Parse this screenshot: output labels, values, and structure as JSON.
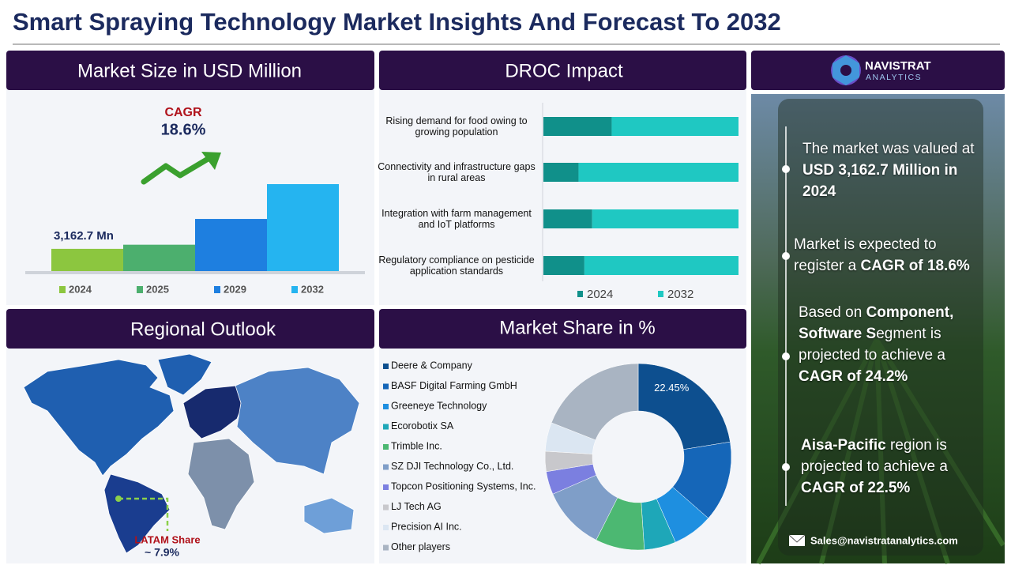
{
  "header": {
    "title": "Smart Spraying Technology Market Insights And Forecast To 2032"
  },
  "chart_data": [
    {
      "type": "bar",
      "title": "Market Size in USD Million",
      "categories": [
        "2024",
        "2025",
        "2029",
        "2032"
      ],
      "values": [
        3162.7,
        3751,
        7420,
        12375
      ],
      "value_labels": [
        "3,162.7 Mn",
        null,
        null,
        null
      ],
      "colors": [
        "#8cc63f",
        "#4caf6e",
        "#1e7fe0",
        "#25b4f0"
      ],
      "annotation": {
        "label": "CAGR",
        "value": "18.6%"
      }
    },
    {
      "type": "bar",
      "orientation": "horizontal",
      "stacked": true,
      "title": "DROC Impact",
      "categories": [
        "Rising demand for food owing to growing population",
        "Connectivity and infrastructure gaps in rural areas",
        "Integration with farm management and IoT platforms",
        "Regulatory compliance on pesticide application standards"
      ],
      "series": [
        {
          "name": "2024",
          "color": "#10908a",
          "values": [
            35,
            18,
            25,
            21
          ]
        },
        {
          "name": "2032",
          "color": "#1fc8c2",
          "values": [
            65,
            82,
            75,
            79
          ]
        }
      ]
    },
    {
      "type": "pie",
      "donut": true,
      "title": "Market Share in %",
      "categories": [
        "Deere & Company",
        "BASF Digital Farming GmbH",
        "Greeneye Technology",
        "Ecorobotix SA",
        "Trimble Inc.",
        "SZ DJI Technology Co., Ltd.",
        "Topcon Positioning Systems, Inc.",
        "LJ Tech AG",
        "Precision AI Inc.",
        "Other players"
      ],
      "values": [
        22.45,
        14,
        7,
        5.5,
        8.5,
        11,
        4,
        3.5,
        5,
        19.05
      ],
      "value_labels": [
        "22.45%",
        null,
        null,
        null,
        null,
        null,
        null,
        null,
        null,
        null
      ],
      "colors": [
        "#0d4f8f",
        "#1566b8",
        "#1e8fe0",
        "#1ea7b8",
        "#4cb872",
        "#7f9ec8",
        "#7b7fe0",
        "#c8c8cc",
        "#dbe6f2",
        "#a9b4c2"
      ]
    }
  ],
  "regional": {
    "title": "Regional Outlook",
    "label": "LATAM Share",
    "value": "~ 7.9%"
  },
  "brand": {
    "name": "NAVISTRAT",
    "tagline": "ANALYTICS"
  },
  "highlights": [
    [
      {
        "text": "The market was valued at ",
        "bold": false
      },
      {
        "text": "USD 3,162.7 Million in 2024",
        "bold": true
      }
    ],
    [
      {
        "text": "Market is expected to register a ",
        "bold": false
      },
      {
        "text": "CAGR of 18.6%",
        "bold": true
      }
    ],
    [
      {
        "text": "Based on ",
        "bold": false
      },
      {
        "text": "Component, Software S",
        "bold": true
      },
      {
        "text": "egment is projected to achieve a ",
        "bold": false
      },
      {
        "text": "CAGR of 24.2%",
        "bold": true
      }
    ],
    [
      {
        "text": "Aisa-Pacific",
        "bold": true
      },
      {
        "text": " region is projected to achieve a ",
        "bold": false
      },
      {
        "text": "CAGR of 22.5%",
        "bold": true
      }
    ]
  ],
  "contact": "Sales@navistratanalytics.com"
}
